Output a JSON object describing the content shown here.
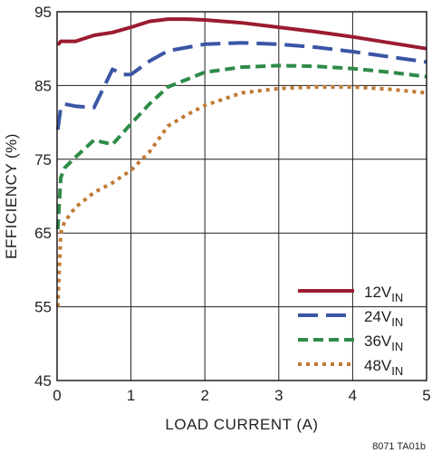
{
  "chart_data": {
    "type": "line",
    "xlabel": "LOAD CURRENT (A)",
    "ylabel": "EFFICIENCY (%)",
    "xlim": [
      0,
      5
    ],
    "ylim": [
      45,
      95
    ],
    "xticks": [
      0,
      1,
      2,
      3,
      4,
      5
    ],
    "yticks": [
      45,
      55,
      65,
      75,
      85,
      95
    ],
    "grid": true,
    "legend_position": "bottom-right",
    "footnote": "8071 TA01b",
    "series": [
      {
        "name": "12V",
        "subscript": "IN",
        "color": "#9b1b30",
        "dash": "solid",
        "x": [
          0.01,
          0.05,
          0.1,
          0.25,
          0.5,
          0.75,
          1.0,
          1.25,
          1.5,
          1.75,
          2.0,
          2.5,
          3.0,
          3.5,
          4.0,
          4.5,
          5.0
        ],
        "y": [
          90.5,
          91.0,
          91.0,
          91.0,
          91.8,
          92.2,
          92.9,
          93.7,
          94.0,
          94.0,
          93.9,
          93.5,
          92.9,
          92.3,
          91.6,
          90.8,
          90.0
        ]
      },
      {
        "name": "24V",
        "subscript": "IN",
        "color": "#3a55a4",
        "dash": "long-dash",
        "x": [
          0.01,
          0.05,
          0.1,
          0.25,
          0.5,
          0.75,
          0.9,
          1.0,
          1.25,
          1.5,
          2.0,
          2.5,
          3.0,
          3.5,
          4.0,
          4.5,
          5.0
        ],
        "y": [
          79.0,
          82.0,
          82.5,
          82.2,
          82.0,
          87.2,
          86.5,
          86.5,
          88.3,
          89.7,
          90.6,
          90.8,
          90.6,
          90.2,
          89.6,
          88.9,
          88.2
        ]
      },
      {
        "name": "36V",
        "subscript": "IN",
        "color": "#2e8b48",
        "dash": "dash",
        "x": [
          0.01,
          0.05,
          0.1,
          0.25,
          0.5,
          0.75,
          1.0,
          1.25,
          1.5,
          2.0,
          2.5,
          3.0,
          3.5,
          4.0,
          4.5,
          5.0
        ],
        "y": [
          65.5,
          72.5,
          73.8,
          75.3,
          77.6,
          77.0,
          79.8,
          82.5,
          84.8,
          86.8,
          87.5,
          87.7,
          87.6,
          87.3,
          86.8,
          86.2
        ]
      },
      {
        "name": "48V",
        "subscript": "IN",
        "color": "#c17a34",
        "dash": "dot",
        "x": [
          0.01,
          0.05,
          0.1,
          0.25,
          0.5,
          0.75,
          1.0,
          1.25,
          1.5,
          1.75,
          2.0,
          2.5,
          3.0,
          3.5,
          4.0,
          4.5,
          5.0
        ],
        "y": [
          55.0,
          65.0,
          66.5,
          68.5,
          70.5,
          71.8,
          73.5,
          76.0,
          79.5,
          81.0,
          82.3,
          84.0,
          84.6,
          84.8,
          84.8,
          84.5,
          84.0
        ]
      }
    ]
  }
}
